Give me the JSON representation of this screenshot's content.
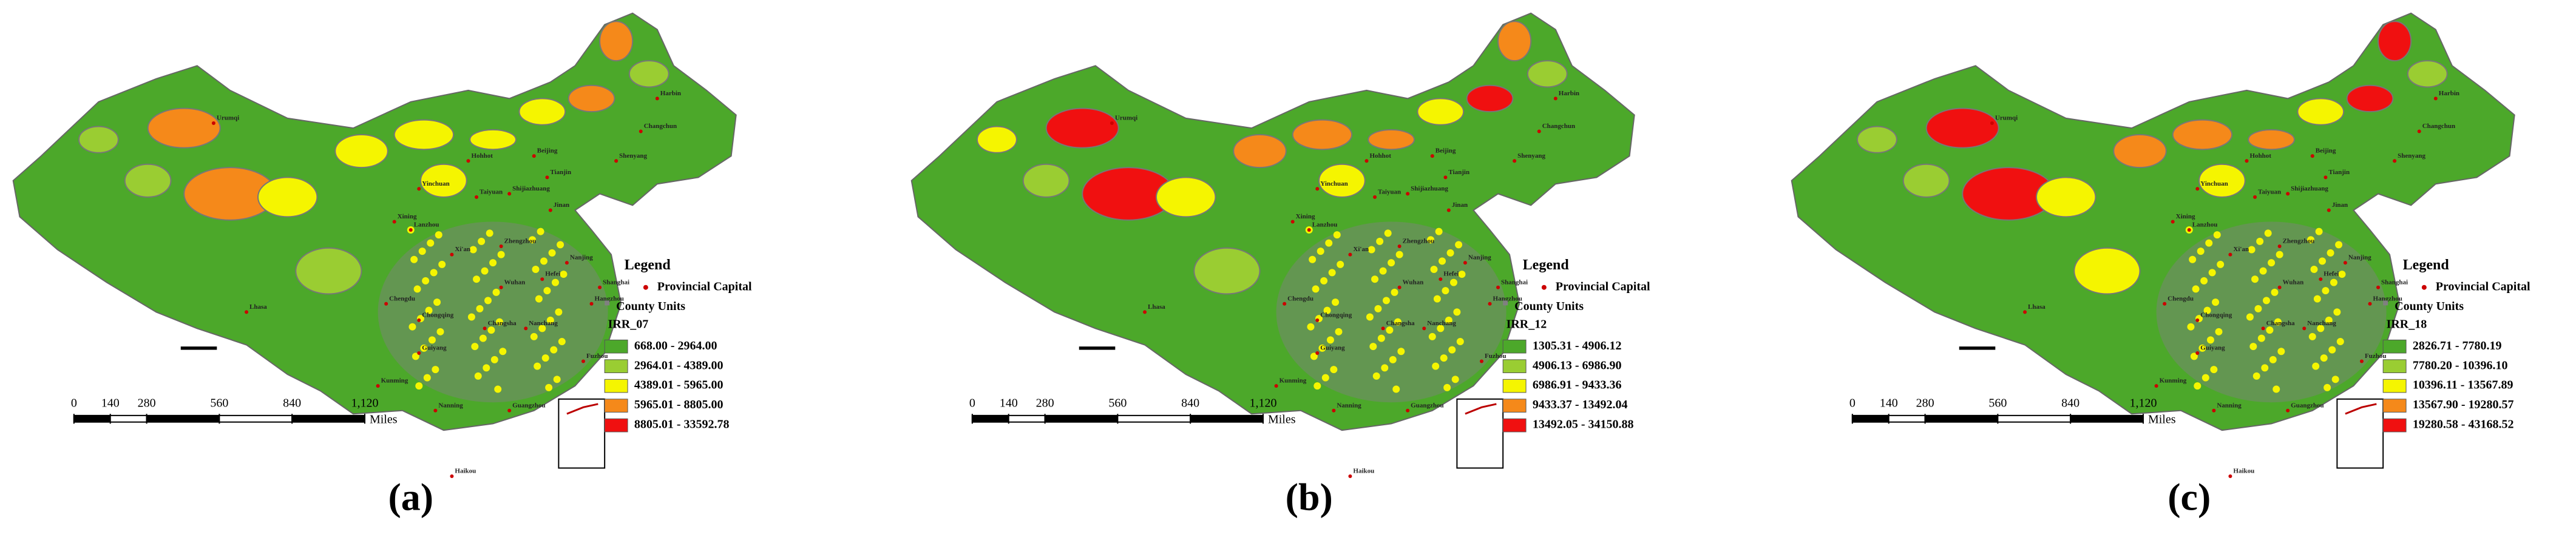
{
  "panels": [
    {
      "label": "(a)",
      "legend": {
        "title": "Legend",
        "capital": "Provincial Capital",
        "county": "County Units",
        "field": "IRR_07",
        "classes": [
          {
            "range": "668.00 - 2964.00",
            "color": "#4ca82a"
          },
          {
            "range": "2964.01 - 4389.00",
            "color": "#9acd32"
          },
          {
            "range": "4389.01 - 5965.00",
            "color": "#f5f500"
          },
          {
            "range": "5965.01 - 8805.00",
            "color": "#f5891a"
          },
          {
            "range": "8805.01 - 33592.78",
            "color": "#f01010"
          }
        ]
      }
    },
    {
      "label": "(b)",
      "legend": {
        "title": "Legend",
        "capital": "Provincial Capital",
        "county": "County Units",
        "field": "IRR_12",
        "classes": [
          {
            "range": "1305.31 - 4906.12",
            "color": "#4ca82a"
          },
          {
            "range": "4906.13 - 6986.90",
            "color": "#9acd32"
          },
          {
            "range": "6986.91 - 9433.36",
            "color": "#f5f500"
          },
          {
            "range": "9433.37 - 13492.04",
            "color": "#f5891a"
          },
          {
            "range": "13492.05 - 34150.88",
            "color": "#f01010"
          }
        ]
      }
    },
    {
      "label": "(c)",
      "legend": {
        "title": "Legend",
        "capital": "Provincial Capital",
        "county": "County Units",
        "field": "IRR_18",
        "classes": [
          {
            "range": "2826.71 - 7780.19",
            "color": "#4ca82a"
          },
          {
            "range": "7780.20 - 10396.10",
            "color": "#9acd32"
          },
          {
            "range": "10396.11 - 13567.89",
            "color": "#f5f500"
          },
          {
            "range": "13567.90 - 19280.57",
            "color": "#f5891a"
          },
          {
            "range": "19280.58 - 43168.52",
            "color": "#f01010"
          }
        ]
      }
    }
  ],
  "scale_bar": {
    "ticks": [
      0,
      140,
      280,
      560,
      840,
      {
        "value": 1120,
        "label": "1,120"
      }
    ],
    "unit": "Miles"
  },
  "cities": [
    "Urumqi",
    "Hohhot",
    "Beijing",
    "Tianjin",
    "Shijiazhuang",
    "Taiyuan",
    "Jinan",
    "Yinchuan",
    "Xining",
    "Lanzhou",
    "Zhengzhou",
    "Xi'an",
    "Lhasa",
    "Chengdu",
    "Chongqing",
    "Wuhan",
    "Hefei",
    "Nanjing",
    "Shanghai",
    "Hangzhou",
    "Changsha",
    "Nanchang",
    "Guiyang",
    "Fuzhou",
    "Kunming",
    "Nanning",
    "Guangzhou",
    "Haikou",
    "Harbin",
    "Changchun",
    "Shenyang"
  ]
}
